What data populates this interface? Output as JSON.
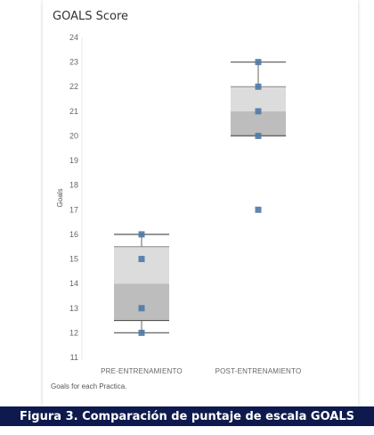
{
  "title": "GOALS Score",
  "footnote": "Goals for each Practica.",
  "caption": "Figura 3. Comparación de puntaje de escala GOALS",
  "colors": {
    "point": "#4e79a7",
    "box_upper": "#dcdcdc",
    "box_lower": "#bdbdbd",
    "whisker": "#666666",
    "caption_bg": "#0e1a4d"
  },
  "chart_data": {
    "type": "box",
    "ylabel": "Goals",
    "ylim": [
      11,
      24
    ],
    "yticks": [
      11,
      12,
      13,
      14,
      15,
      16,
      17,
      18,
      19,
      20,
      21,
      22,
      23,
      24
    ],
    "categories": [
      "PRE-ENTRENAMIENTO",
      "POST-ENTRENAMIENTO"
    ],
    "boxes": [
      {
        "category": "PRE-ENTRENAMIENTO",
        "min": 12,
        "q1": 12.5,
        "median": 14,
        "q3": 15.5,
        "max": 16,
        "points": [
          12,
          13,
          15,
          16
        ]
      },
      {
        "category": "POST-ENTRENAMIENTO",
        "min": 20,
        "q1": 20,
        "median": 21,
        "q3": 22,
        "max": 23,
        "points": [
          17,
          20,
          21,
          22,
          23
        ]
      }
    ],
    "grid": false,
    "legend": "none"
  }
}
